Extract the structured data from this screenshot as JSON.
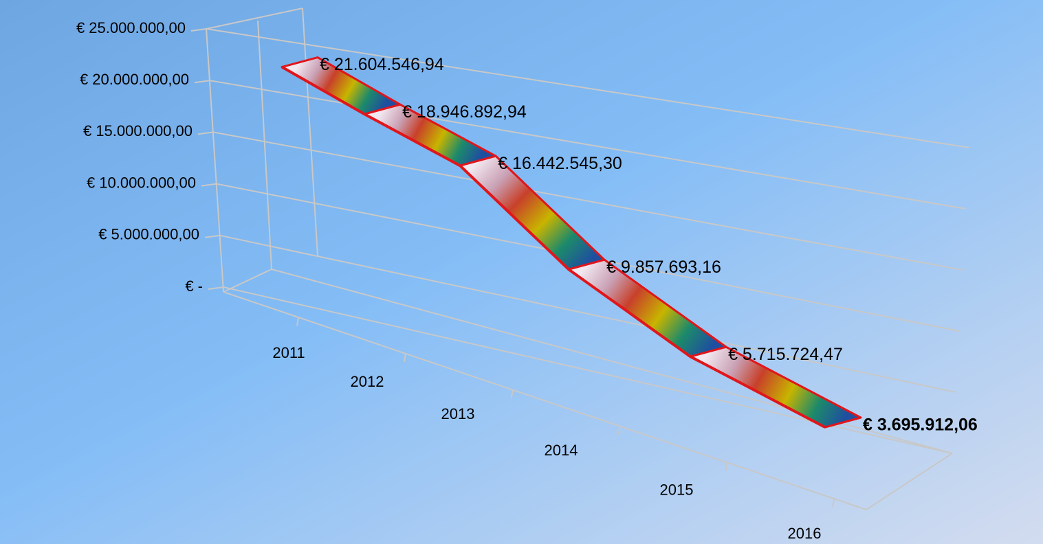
{
  "chart_data": {
    "type": "line3d",
    "categories": [
      "2011",
      "2012",
      "2013",
      "2014",
      "2015",
      "2016"
    ],
    "values": [
      21604546.94,
      18946892.94,
      16442545.3,
      9857693.16,
      5715724.47,
      3695912.06
    ],
    "value_labels": [
      "€ 21.604.546,94",
      "€ 18.946.892,94",
      "€ 16.442.545,30",
      "€ 9.857.693,16",
      "€ 5.715.724,47",
      "€ 3.695.912,06"
    ],
    "ylim": [
      0,
      25000000
    ],
    "yticks": [
      {
        "value": 0,
        "label": "€ -"
      },
      {
        "value": 5000000,
        "label": "€ 5.000.000,00"
      },
      {
        "value": 10000000,
        "label": "€ 10.000.000,00"
      },
      {
        "value": 15000000,
        "label": "€ 15.000.000,00"
      },
      {
        "value": 20000000,
        "label": "€ 20.000.000,00"
      },
      {
        "value": 25000000,
        "label": "€ 25.000.000,00"
      }
    ],
    "grid": true,
    "color": "#e0161b",
    "highlight": {
      "index": 5,
      "color": "#ff0000"
    }
  }
}
